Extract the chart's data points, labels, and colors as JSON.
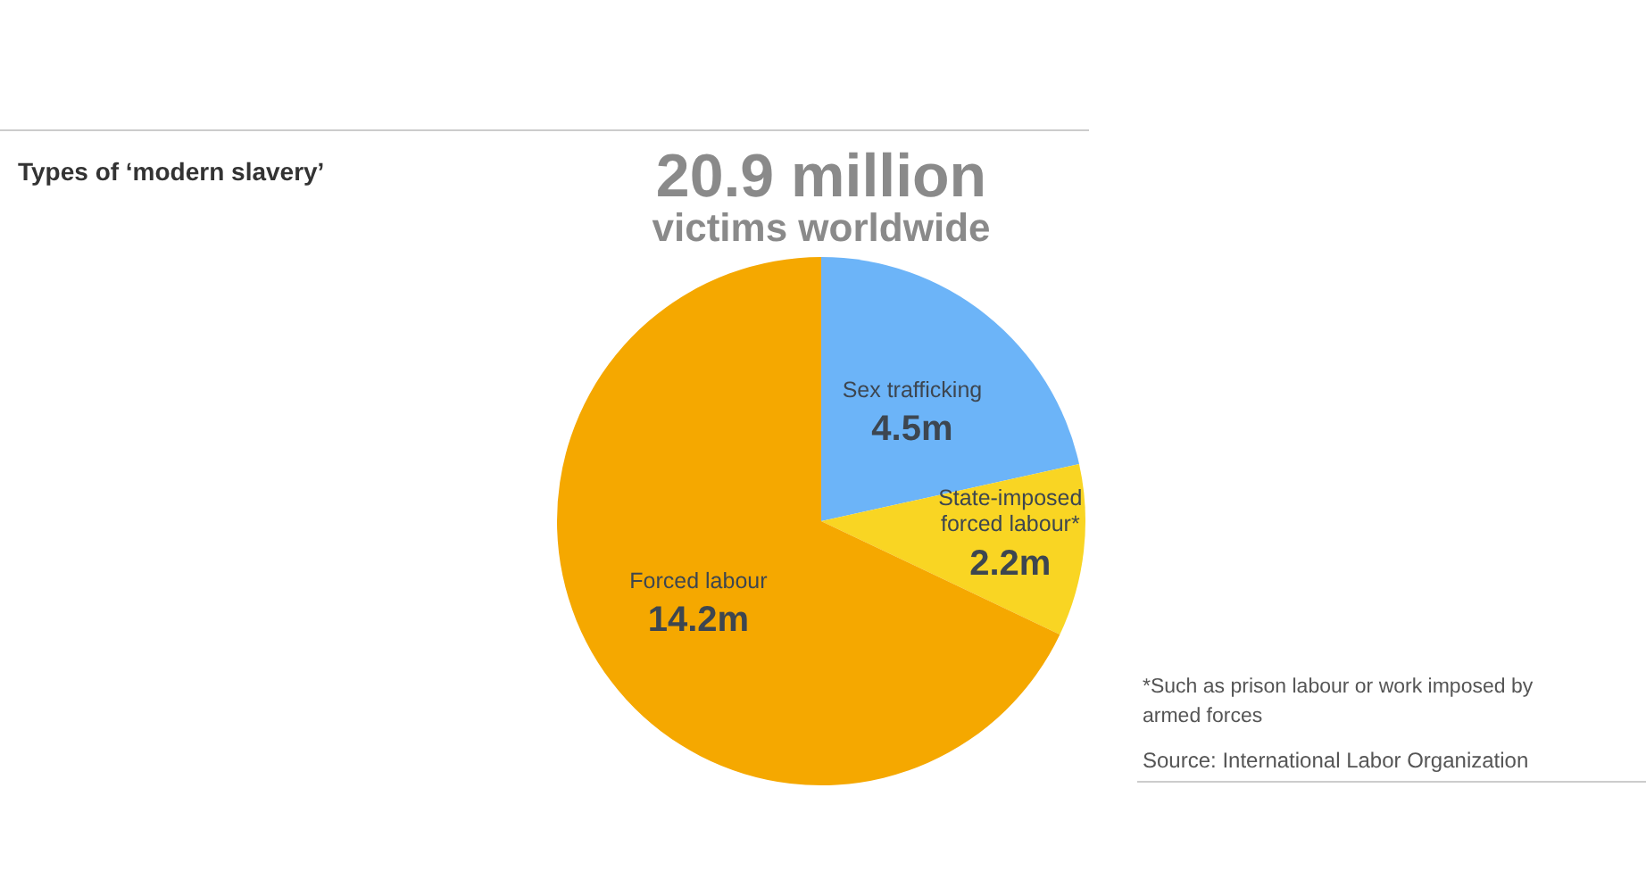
{
  "chart_data": {
    "type": "pie",
    "title": "Types of ‘modern slavery’",
    "annotations": [
      "20.9 million",
      "victims worldwide",
      "*Such as prison labour or work imposed by\narmed forces",
      "Source: International Labor Organization"
    ],
    "categories": [
      "Sex trafficking",
      "State-imposed\nforced labour*",
      "Forced labour"
    ],
    "values": [
      4.5,
      2.2,
      14.2
    ],
    "value_labels": [
      "4.5m",
      "2.2m",
      "14.2m"
    ],
    "colors": [
      "#6cb4f8",
      "#f9d523",
      "#f5a800"
    ]
  }
}
